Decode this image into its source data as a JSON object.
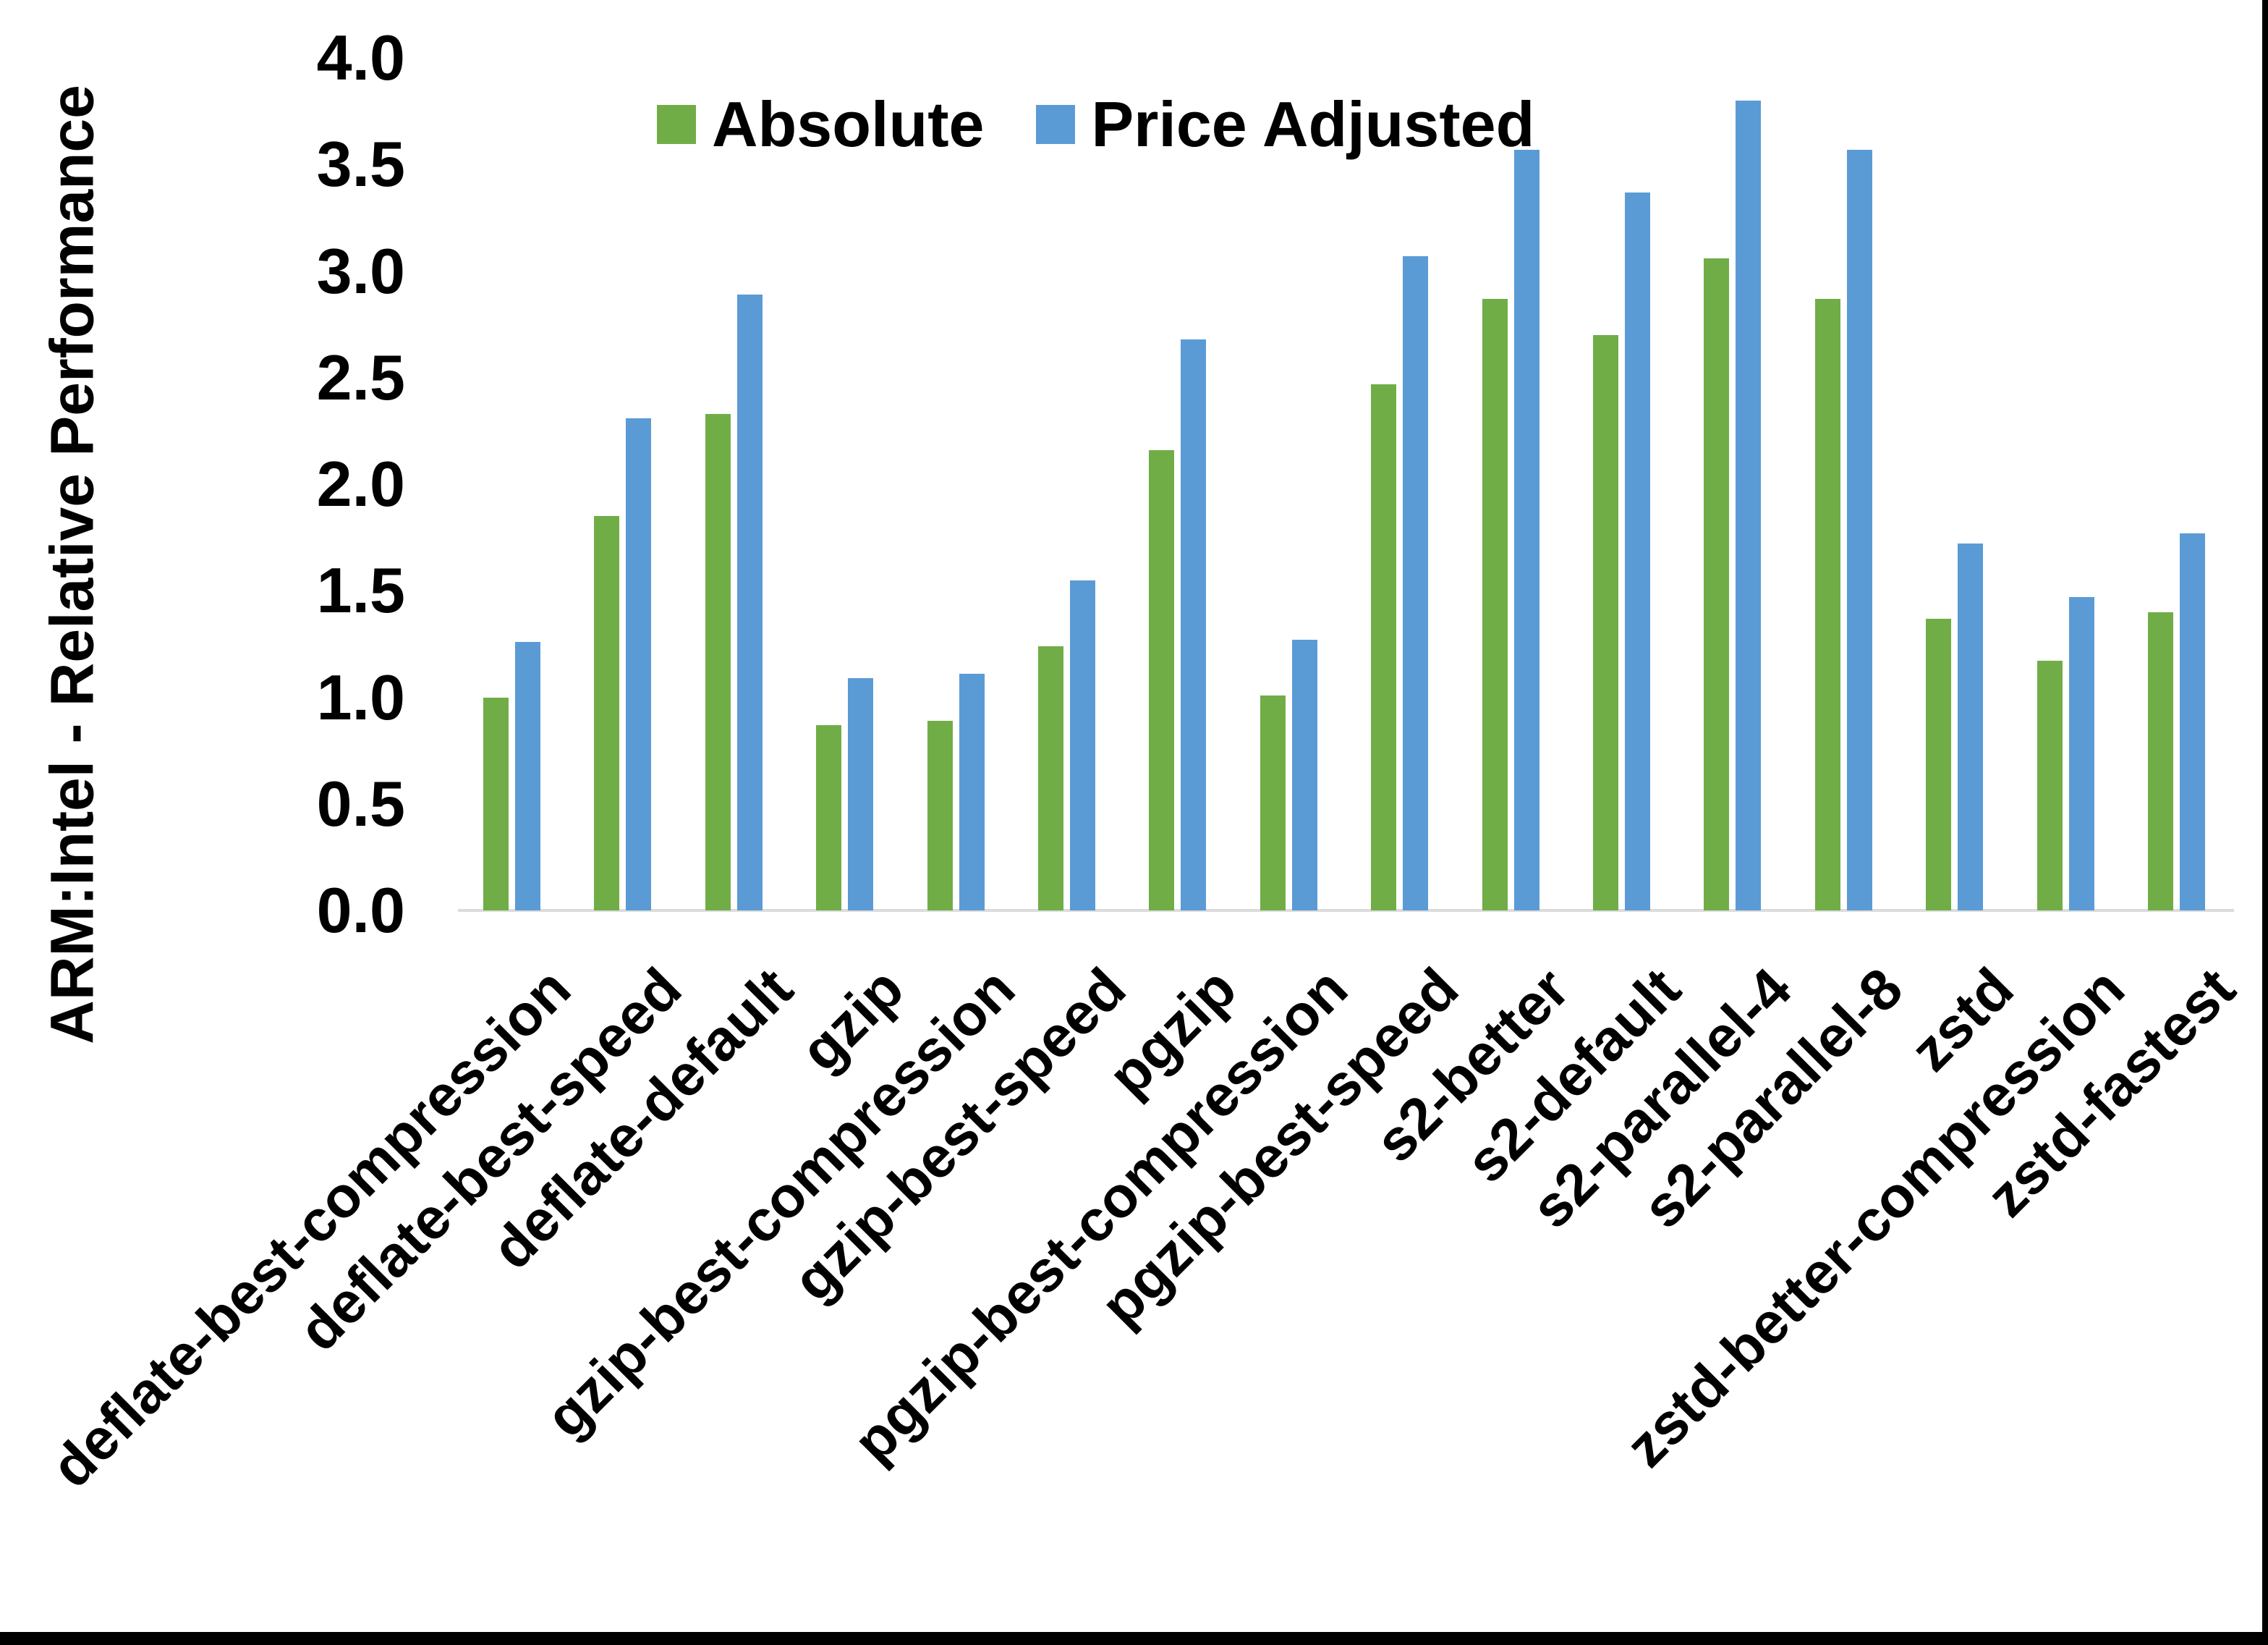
{
  "chart_data": {
    "type": "bar",
    "title": "",
    "ylabel": "ARM:Intel - Relative Performance",
    "xlabel": "",
    "ylim": [
      0.0,
      4.0
    ],
    "ytick_step": 0.5,
    "ytick_labels": [
      "4.0",
      "3.5",
      "3.0",
      "2.5",
      "2.0",
      "1.5",
      "1.0",
      "0.5",
      "0.0"
    ],
    "grid": false,
    "legend_position": "top-center",
    "categories": [
      "deflate-best-compression",
      "deflate-best-speed",
      "deflate-default",
      "gzip",
      "gzip-best-compression",
      "gzip-best-speed",
      "pgzip",
      "pgzip-best-compression",
      "pgzip-best-speed",
      "s2-better",
      "s2-default",
      "s2-parallel-4",
      "s2-parallel-8",
      "zstd",
      "zstd-better-compression",
      "zstd-fastest"
    ],
    "series": [
      {
        "name": "Absolute",
        "color": "#70AD47",
        "values": [
          1.0,
          1.85,
          2.33,
          0.87,
          0.89,
          1.24,
          2.16,
          1.01,
          2.47,
          2.87,
          2.7,
          3.06,
          2.87,
          1.37,
          1.17,
          1.4
        ]
      },
      {
        "name": "Price Adjusted",
        "color": "#5B9BD5",
        "values": [
          1.26,
          2.31,
          2.89,
          1.09,
          1.11,
          1.55,
          2.68,
          1.27,
          3.07,
          3.57,
          3.37,
          3.8,
          3.57,
          1.72,
          1.47,
          1.77
        ]
      }
    ]
  },
  "colors": {
    "background": "#FFFFFF",
    "axis_line": "#DCDCDC",
    "text": "#000000",
    "frame_border": "#000000"
  }
}
